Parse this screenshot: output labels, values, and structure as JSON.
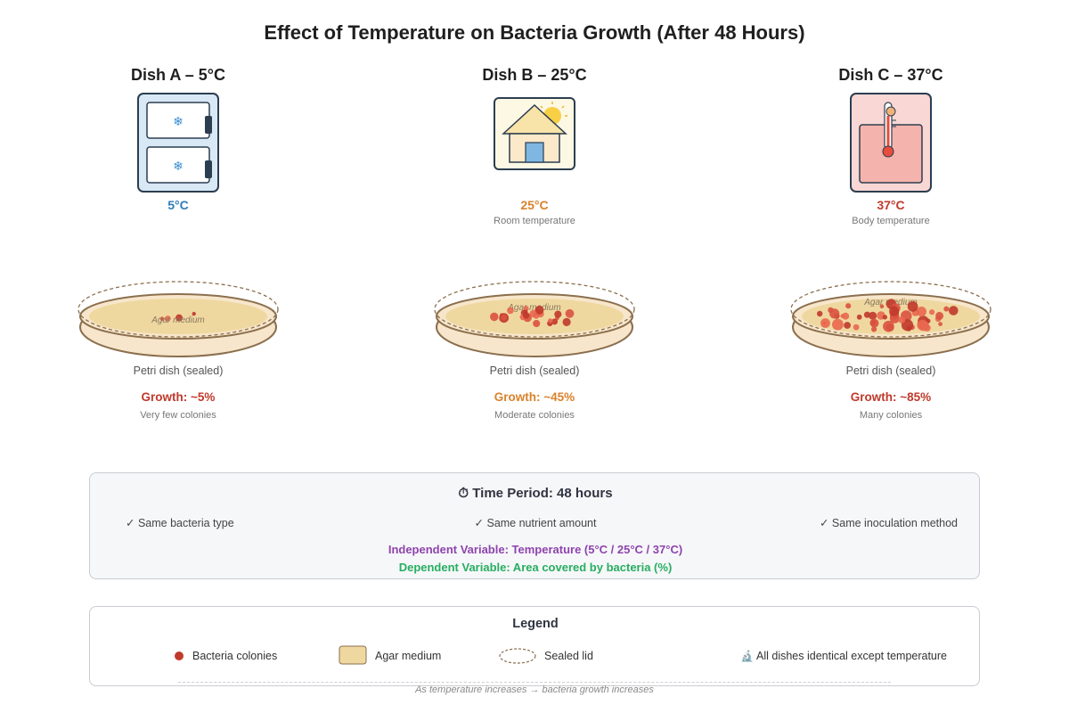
{
  "title": "Effect of Temperature on Bacteria Growth (After 48 Hours)",
  "dishes": [
    {
      "title": "Dish A – 5°C",
      "temp": "5°C",
      "temp_note": "",
      "agar_label": "Agar medium",
      "caption": "Petri dish (sealed)",
      "growth_label": "Growth: ~5%",
      "growth_percent": 5,
      "colonies_note": "Very few colonies",
      "color": "#2e7db8",
      "growth_color": "#c0392b",
      "icon": "refrigerator-icon"
    },
    {
      "title": "Dish B – 25°C",
      "temp": "25°C",
      "temp_note": "Room temperature",
      "agar_label": "Agar medium",
      "caption": "Petri dish (sealed)",
      "growth_label": "Growth: ~45%",
      "growth_percent": 45,
      "colonies_note": "Moderate colonies",
      "color": "#d9822b",
      "growth_color": "#d9822b",
      "icon": "house-sun-icon"
    },
    {
      "title": "Dish C – 37°C",
      "temp": "37°C",
      "temp_note": "Body temperature",
      "agar_label": "Agar medium",
      "caption": "Petri dish (sealed)",
      "growth_label": "Growth: ~85%",
      "growth_percent": 85,
      "colonies_note": "Many colonies",
      "color": "#c0392b",
      "growth_color": "#c0392b",
      "icon": "incubator-thermometer-icon"
    }
  ],
  "time_panel": {
    "title": "⏱ Time Period: 48 hours",
    "checks": [
      "✓ Same bacteria type",
      "✓ Same nutrient amount",
      "✓ Same inoculation method"
    ],
    "independent": "Independent Variable: Temperature (5°C / 25°C / 37°C)",
    "dependent": "Dependent Variable: Area covered by bacteria (%)",
    "independent_color": "#8e44ad",
    "dependent_color": "#27ae60"
  },
  "legend": {
    "title": "Legend",
    "items": [
      "Bacteria colonies",
      "Agar medium",
      "Sealed lid",
      "All dishes identical except temperature"
    ],
    "note_icon": "🔬"
  },
  "footer": "As temperature increases → bacteria growth increases",
  "colors": {
    "bacteria": "#c0392b",
    "agar": "#efd8a0",
    "dish_rim": "#8b6f4e",
    "fridge_bg": "#d9e8f5",
    "incubator_bg": "#f8d7d4"
  }
}
